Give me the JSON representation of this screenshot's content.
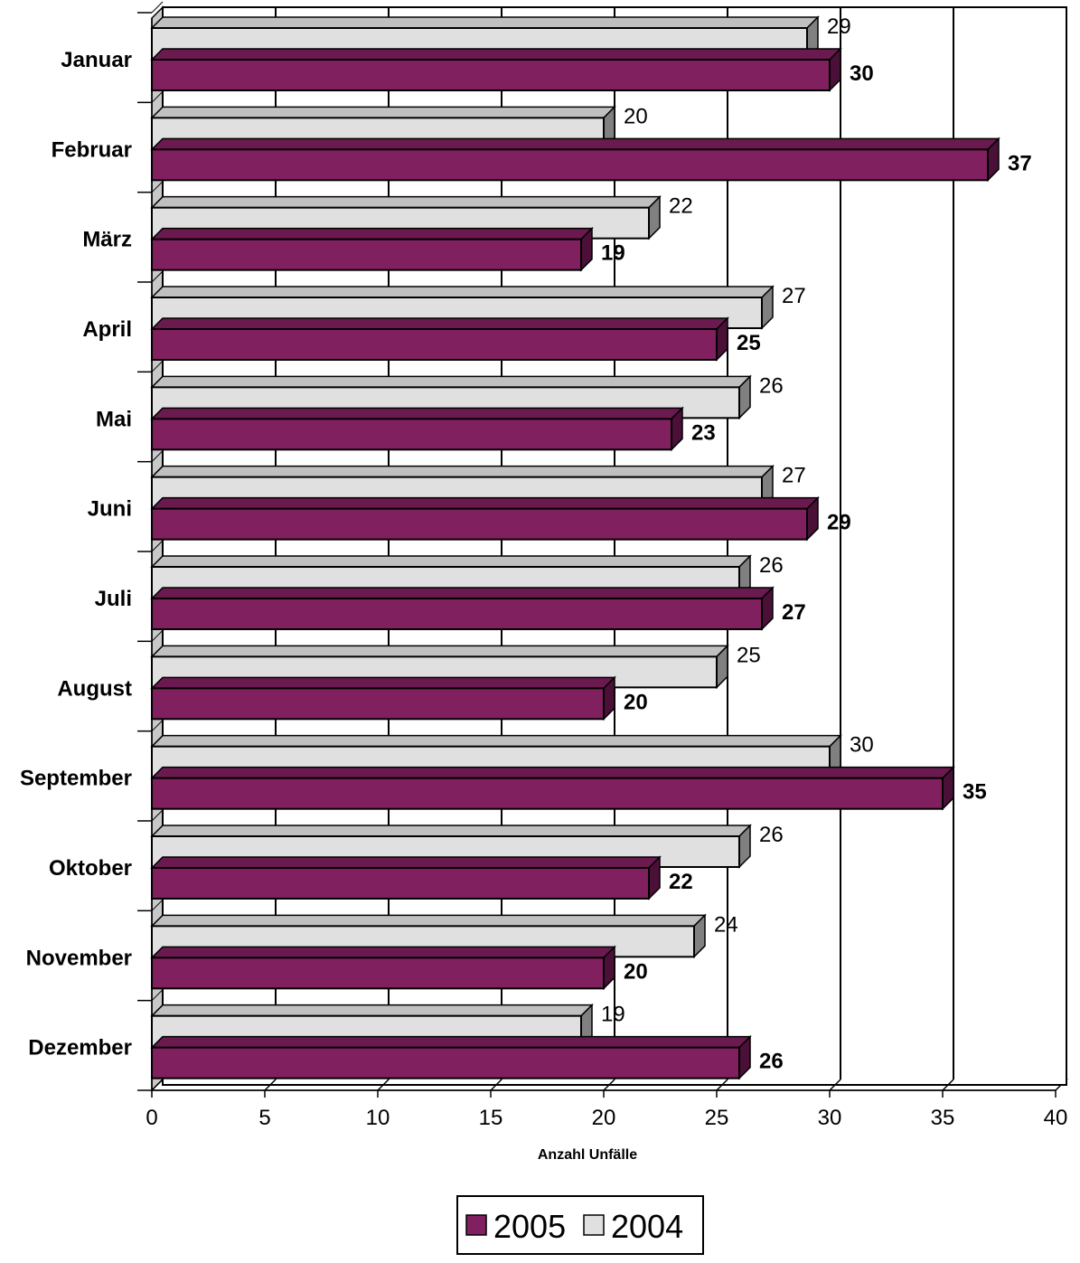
{
  "chart_data": {
    "type": "bar",
    "orientation": "horizontal",
    "categories": [
      "Januar",
      "Februar",
      "März",
      "April",
      "Mai",
      "Juni",
      "Juli",
      "August",
      "September",
      "Oktober",
      "November",
      "Dezember"
    ],
    "series": [
      {
        "name": "2004",
        "color": "#e0e0e0",
        "values": [
          29,
          20,
          22,
          27,
          26,
          27,
          26,
          25,
          30,
          26,
          24,
          19
        ]
      },
      {
        "name": "2005",
        "color": "#80205f",
        "values": [
          30,
          37,
          19,
          25,
          23,
          29,
          27,
          20,
          35,
          22,
          20,
          26
        ]
      }
    ],
    "xlabel": "Anzahl Unfälle",
    "xlim": [
      0,
      40
    ],
    "xticks": [
      "0",
      "5",
      "10",
      "15",
      "20",
      "25",
      "30",
      "35",
      "40"
    ],
    "grid": "vertical",
    "legend": {
      "placement": "bottom-center",
      "entries": [
        "2005",
        "2004"
      ]
    }
  }
}
